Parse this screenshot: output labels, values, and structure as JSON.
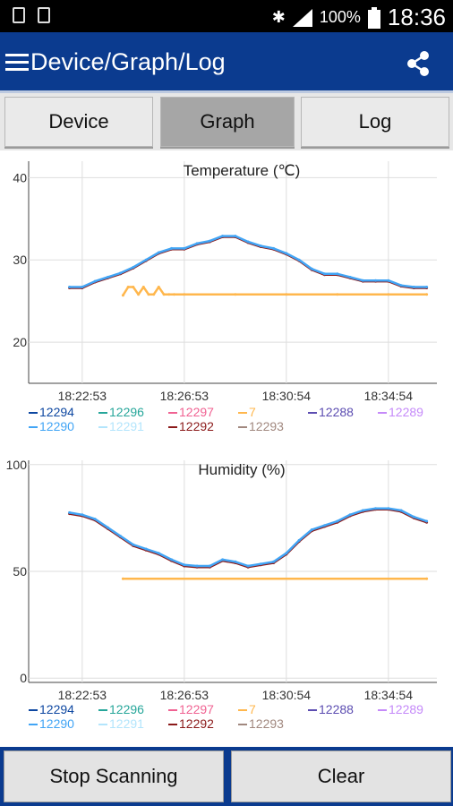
{
  "status": {
    "battery_percent": "100%",
    "time": "18:36"
  },
  "appbar": {
    "title": "Device/Graph/Log"
  },
  "tabs": [
    {
      "label": "Device"
    },
    {
      "label": "Graph"
    },
    {
      "label": "Log"
    }
  ],
  "colors": {
    "appbar": "#0b3b8f",
    "s12294": "#0d47a1",
    "s12296": "#26a69a",
    "s12297": "#f06292",
    "s7": "#ffb74d",
    "s12288": "#5c4db1",
    "s12289": "#c58af9",
    "s12290": "#42a5f5",
    "s12291": "#b3e5fc",
    "s12292": "#8b1a1a",
    "s12293": "#a1887f"
  },
  "legend": [
    [
      "12294",
      "12296",
      "12297",
      "7",
      "12288",
      "12289"
    ],
    [
      "12290",
      "12291",
      "12292",
      "12293"
    ]
  ],
  "chart_data": [
    {
      "type": "line",
      "title": "Temperature (℃)",
      "xlabel": "",
      "ylabel": "",
      "y_ticks": [
        "20",
        "30",
        "40"
      ],
      "ylim": [
        15,
        42
      ],
      "x_ticks": [
        "18:22:53",
        "18:26:53",
        "18:30:54",
        "18:34:54"
      ],
      "x_ticks_minutes": [
        0,
        4,
        8,
        12
      ],
      "xlim_minutes": [
        -2.1,
        13.9
      ],
      "grid": true,
      "legend_position": "bottom",
      "series": [
        {
          "name": "12292",
          "color_key": "s12292",
          "x_minutes": [
            -0.5,
            0,
            0.5,
            1,
            1.5,
            2,
            2.5,
            3,
            3.5,
            4,
            4.5,
            5,
            5.5,
            6,
            6.5,
            7,
            7.5,
            8,
            8.5,
            9,
            9.5,
            10,
            10.5,
            11,
            11.5,
            12,
            12.5,
            13,
            13.5
          ],
          "y": [
            26.6,
            26.6,
            27.3,
            27.8,
            28.3,
            29.0,
            29.9,
            30.8,
            31.3,
            31.3,
            31.9,
            32.2,
            32.8,
            32.8,
            32.1,
            31.6,
            31.3,
            30.7,
            29.9,
            28.8,
            28.2,
            28.2,
            27.8,
            27.4,
            27.4,
            27.4,
            26.8,
            26.6,
            26.6
          ]
        },
        {
          "name": "12290",
          "color_key": "s12290",
          "x_minutes": [
            -0.5,
            0,
            0.5,
            1,
            1.5,
            2,
            2.5,
            3,
            3.5,
            4,
            4.5,
            5,
            5.5,
            6,
            6.5,
            7,
            7.5,
            8,
            8.5,
            9,
            9.5,
            10,
            10.5,
            11,
            11.5,
            12,
            12.5,
            13,
            13.5
          ],
          "y": [
            26.7,
            26.7,
            27.4,
            27.9,
            28.4,
            29.1,
            30.0,
            30.9,
            31.4,
            31.4,
            32.0,
            32.3,
            32.9,
            32.9,
            32.2,
            31.7,
            31.4,
            30.8,
            30.0,
            28.9,
            28.3,
            28.3,
            27.9,
            27.5,
            27.5,
            27.5,
            26.9,
            26.7,
            26.7
          ]
        },
        {
          "name": "7",
          "color_key": "s7",
          "x_minutes": [
            1.6,
            1.8,
            2.0,
            2.2,
            2.4,
            2.6,
            2.8,
            3.0,
            3.2,
            3.4,
            3.6,
            4.0,
            6,
            8,
            10,
            12,
            13.5
          ],
          "y": [
            25.7,
            26.7,
            26.7,
            25.8,
            26.7,
            25.8,
            25.8,
            26.7,
            25.8,
            25.8,
            25.8,
            25.8,
            25.8,
            25.8,
            25.8,
            25.8,
            25.8
          ]
        }
      ]
    },
    {
      "type": "line",
      "title": "Humidity (%)",
      "xlabel": "",
      "ylabel": "",
      "y_ticks": [
        "0",
        "50",
        "100"
      ],
      "ylim": [
        -2,
        102
      ],
      "x_ticks": [
        "18:22:53",
        "18:26:53",
        "18:30:54",
        "18:34:54"
      ],
      "x_ticks_minutes": [
        0,
        4,
        8,
        12
      ],
      "xlim_minutes": [
        -2.1,
        13.9
      ],
      "grid": true,
      "legend_position": "bottom",
      "series": [
        {
          "name": "12292",
          "color_key": "s12292",
          "x_minutes": [
            -0.5,
            0,
            0.5,
            1,
            1.5,
            2,
            2.5,
            3,
            3.5,
            4,
            4.5,
            5,
            5.5,
            6,
            6.5,
            7,
            7.5,
            8,
            8.5,
            9,
            9.5,
            10,
            10.5,
            11,
            11.5,
            12,
            12.5,
            13,
            13.5
          ],
          "y": [
            77,
            76,
            74,
            70,
            66,
            62,
            60,
            58,
            55,
            52.5,
            52,
            52,
            55,
            54,
            52,
            53,
            54,
            58,
            64,
            69,
            71,
            73,
            76,
            78,
            79,
            79,
            78,
            75,
            73
          ]
        },
        {
          "name": "12290",
          "color_key": "s12290",
          "x_minutes": [
            -0.5,
            0,
            0.5,
            1,
            1.5,
            2,
            2.5,
            3,
            3.5,
            4,
            4.5,
            5,
            5.5,
            6,
            6.5,
            7,
            7.5,
            8,
            8.5,
            9,
            9.5,
            10,
            10.5,
            11,
            11.5,
            12,
            12.5,
            13,
            13.5
          ],
          "y": [
            77.5,
            76.5,
            74.5,
            70.5,
            66.5,
            62.5,
            60.5,
            58.5,
            55.5,
            53,
            52.5,
            52.5,
            55.5,
            54.5,
            52.5,
            53.5,
            54.5,
            58.5,
            64.5,
            69.5,
            71.5,
            73.5,
            76.5,
            78.5,
            79.5,
            79.5,
            78.5,
            75.5,
            73.5
          ]
        },
        {
          "name": "7",
          "color_key": "s7",
          "x_minutes": [
            1.6,
            13.5
          ],
          "y": [
            46.5,
            46.5
          ]
        }
      ]
    }
  ],
  "bottom": {
    "stop_label": "Stop Scanning",
    "clear_label": "Clear"
  }
}
